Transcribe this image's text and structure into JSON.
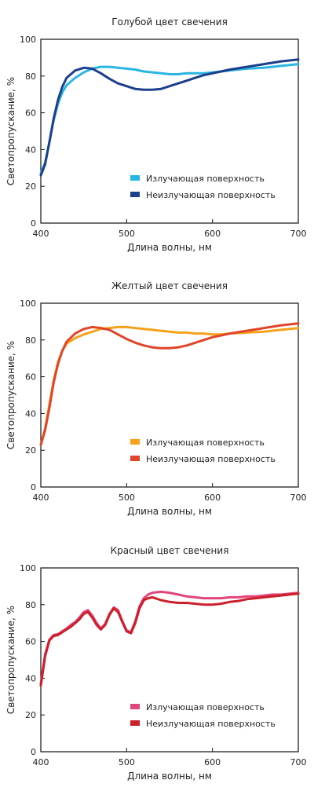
{
  "chart_data": [
    {
      "type": "line",
      "title": "Голубой цвет свечения",
      "xlabel": "Длина волны, нм",
      "ylabel": "Светопропускание, %",
      "xlim": [
        400,
        700
      ],
      "ylim": [
        0,
        100
      ],
      "xticks": [
        400,
        500,
        600,
        700
      ],
      "yticks": [
        0,
        20,
        40,
        60,
        80,
        100
      ],
      "grid": false,
      "legend_position": "center-right",
      "series": [
        {
          "name": "Излучающая поверхность",
          "color": "#29b6e3",
          "x": [
            400,
            405,
            410,
            415,
            420,
            425,
            430,
            440,
            450,
            460,
            470,
            480,
            490,
            500,
            510,
            520,
            530,
            540,
            550,
            560,
            570,
            580,
            590,
            600,
            610,
            620,
            640,
            660,
            680,
            700
          ],
          "y": [
            27,
            33,
            44,
            56,
            65,
            71,
            75,
            79,
            82,
            84,
            85,
            85,
            84.5,
            84,
            83.5,
            82.5,
            82,
            81.5,
            81,
            81,
            81.5,
            81.5,
            81.5,
            82,
            82.5,
            83,
            84,
            84.5,
            85.5,
            86.5
          ]
        },
        {
          "name": "Неизлучающая поверхность",
          "color": "#1c3f8c",
          "x": [
            400,
            405,
            410,
            415,
            420,
            425,
            430,
            440,
            450,
            460,
            470,
            480,
            490,
            500,
            510,
            520,
            530,
            540,
            550,
            560,
            570,
            580,
            590,
            600,
            610,
            620,
            640,
            660,
            680,
            700
          ],
          "y": [
            26,
            32,
            44,
            57,
            67,
            74,
            79,
            83,
            84.5,
            84,
            81.5,
            78.5,
            76,
            74.5,
            73,
            72.5,
            72.5,
            73,
            74.5,
            76,
            77.5,
            79,
            80.5,
            81.5,
            82.5,
            83.5,
            85,
            86.5,
            88,
            89
          ]
        }
      ]
    },
    {
      "type": "line",
      "title": "Желтый цвет свечения",
      "xlabel": "Длина волны, нм",
      "ylabel": "Светопропускание, %",
      "xlim": [
        400,
        700
      ],
      "ylim": [
        0,
        100
      ],
      "xticks": [
        400,
        500,
        600,
        700
      ],
      "yticks": [
        0,
        20,
        40,
        60,
        80,
        100
      ],
      "grid": false,
      "legend_position": "center-right",
      "series": [
        {
          "name": "Излучающая поверхность",
          "color": "#f5a21b",
          "x": [
            400,
            405,
            410,
            415,
            420,
            425,
            430,
            440,
            450,
            460,
            470,
            480,
            490,
            500,
            510,
            520,
            530,
            540,
            550,
            560,
            570,
            580,
            590,
            600,
            610,
            620,
            640,
            660,
            680,
            700
          ],
          "y": [
            23,
            32,
            45,
            58,
            68,
            74,
            78,
            81,
            83,
            84.5,
            86,
            86.5,
            87,
            87,
            86.5,
            86,
            85.5,
            85,
            84.5,
            84,
            84,
            83.5,
            83.5,
            83,
            83,
            83.5,
            84,
            84.5,
            85.5,
            86.5
          ]
        },
        {
          "name": "Неизлучающая поверхность",
          "color": "#e0452a",
          "x": [
            400,
            405,
            410,
            415,
            420,
            425,
            430,
            440,
            450,
            460,
            470,
            480,
            490,
            500,
            510,
            520,
            530,
            540,
            550,
            560,
            570,
            580,
            590,
            600,
            610,
            620,
            640,
            660,
            680,
            700
          ],
          "y": [
            23,
            31,
            43,
            57,
            67,
            74,
            79,
            83.5,
            86,
            87,
            86.5,
            85.5,
            83,
            80.5,
            78.5,
            77,
            76,
            75.5,
            75.5,
            76,
            77,
            78.5,
            80,
            81.5,
            82.5,
            83.5,
            85,
            86.5,
            88,
            89
          ]
        }
      ]
    },
    {
      "type": "line",
      "title": "Красный цвет свечения",
      "xlabel": "Длина волны, нм",
      "ylabel": "Светопропускание, %",
      "xlim": [
        400,
        700
      ],
      "ylim": [
        0,
        100
      ],
      "xticks": [
        400,
        500,
        600,
        700
      ],
      "yticks": [
        0,
        20,
        40,
        60,
        80,
        100
      ],
      "grid": false,
      "legend_position": "center-right",
      "series": [
        {
          "name": "Излучающая поверхность",
          "color": "#e0457b",
          "x": [
            400,
            405,
            410,
            415,
            420,
            425,
            430,
            435,
            440,
            445,
            450,
            455,
            460,
            465,
            470,
            475,
            480,
            485,
            490,
            495,
            500,
            505,
            510,
            515,
            520,
            525,
            530,
            540,
            550,
            560,
            570,
            580,
            590,
            600,
            610,
            620,
            630,
            640,
            650,
            660,
            670,
            680,
            690,
            700
          ],
          "y": [
            37,
            53,
            61,
            63.5,
            64,
            65.5,
            67,
            69,
            70.5,
            73,
            76,
            77,
            74,
            70,
            67,
            69.5,
            75,
            78.5,
            77,
            71,
            66,
            65,
            71,
            79,
            83.5,
            85.5,
            86.5,
            87,
            86.5,
            85.5,
            84.5,
            84,
            83.5,
            83.5,
            83.5,
            84,
            84,
            84.5,
            84.5,
            85,
            85.5,
            85.5,
            86,
            86.5
          ]
        },
        {
          "name": "Неизлучающая поверхность",
          "color": "#cc1f2a",
          "x": [
            400,
            405,
            410,
            415,
            420,
            425,
            430,
            435,
            440,
            445,
            450,
            455,
            460,
            465,
            470,
            475,
            480,
            485,
            490,
            495,
            500,
            505,
            510,
            515,
            520,
            525,
            530,
            540,
            550,
            560,
            570,
            580,
            590,
            600,
            610,
            620,
            630,
            640,
            650,
            660,
            670,
            680,
            690,
            700
          ],
          "y": [
            36,
            52,
            60.5,
            63,
            63.5,
            65,
            66.5,
            68,
            70,
            72,
            75,
            76,
            73,
            69,
            66.5,
            69,
            74.5,
            78,
            76,
            70.5,
            65.5,
            64.5,
            70,
            78,
            82.5,
            83.5,
            84,
            82.5,
            81.5,
            81,
            81,
            80.5,
            80,
            80,
            80.5,
            81.5,
            82,
            83,
            83.5,
            84,
            84.5,
            85,
            85.5,
            86
          ]
        }
      ]
    }
  ]
}
